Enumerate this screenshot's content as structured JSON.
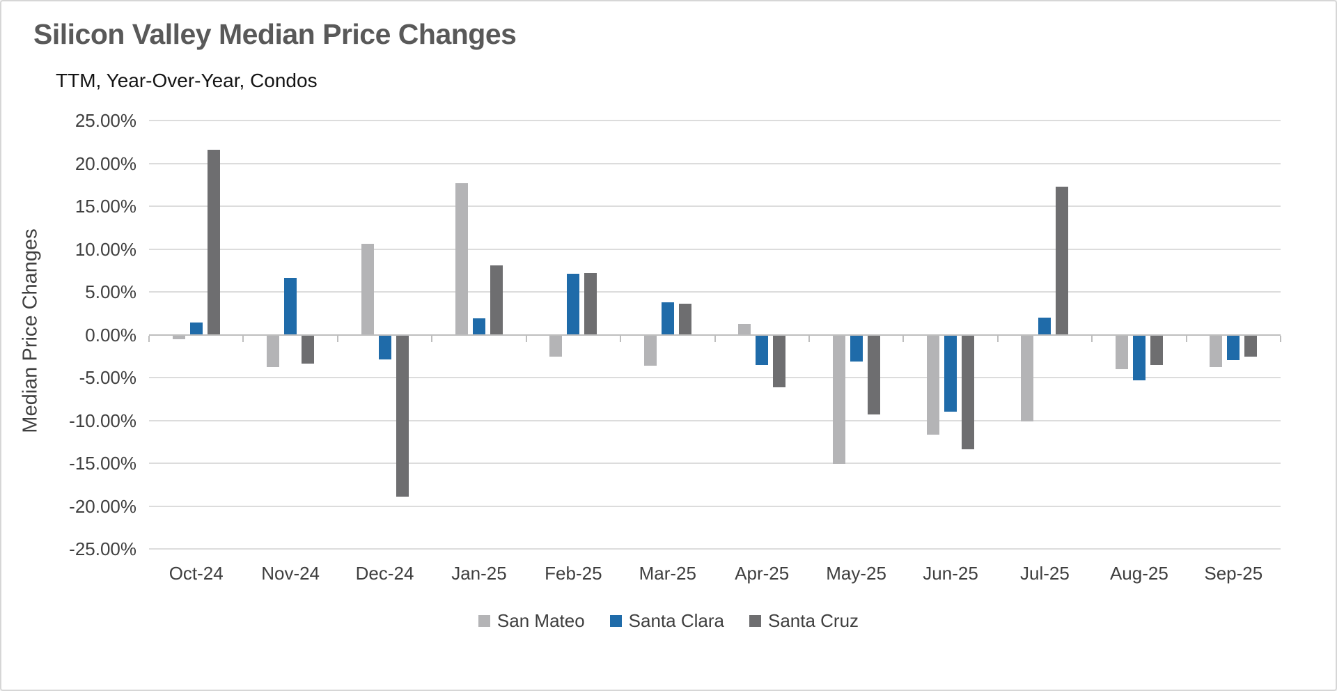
{
  "chart_data": {
    "type": "bar",
    "title": "Silicon Valley Median Price Changes",
    "subtitle": "TTM, Year-Over-Year, Condos",
    "ylabel": "Median Price Changes",
    "value_unit": "percent",
    "ylim": [
      -25,
      25
    ],
    "ytick_step": 5,
    "ytick_format": "0.00%",
    "grid": "horizontal",
    "legend_position": "bottom",
    "categories": [
      "Oct-24",
      "Nov-24",
      "Dec-24",
      "Jan-25",
      "Feb-25",
      "Mar-25",
      "Apr-25",
      "May-25",
      "Jun-25",
      "Jul-25",
      "Aug-25",
      "Sep-25"
    ],
    "series": [
      {
        "name": "San Mateo",
        "color": "#b4b4b6",
        "values": [
          -0.5,
          -3.8,
          10.6,
          17.7,
          -2.6,
          -3.6,
          1.3,
          -15.1,
          -11.7,
          -10.1,
          -4.0,
          -3.8
        ]
      },
      {
        "name": "Santa Clara",
        "color": "#1f6ba9",
        "values": [
          1.4,
          6.6,
          -2.9,
          1.9,
          7.1,
          3.8,
          -3.5,
          -3.1,
          -9.0,
          2.0,
          -5.3,
          -3.0
        ]
      },
      {
        "name": "Santa Cruz",
        "color": "#6e6e70",
        "values": [
          21.6,
          -3.4,
          -18.9,
          8.1,
          7.2,
          3.6,
          -6.1,
          -9.3,
          -13.4,
          17.3,
          -3.5,
          -2.6
        ]
      }
    ],
    "ytick_labels": [
      "25.00%",
      "20.00%",
      "15.00%",
      "10.00%",
      "5.00%",
      "0.00%",
      "-5.00%",
      "-10.00%",
      "-15.00%",
      "-20.00%",
      "-25.00%"
    ]
  },
  "colors": {
    "gridline": "#dcdcdc",
    "axis": "#bebebe",
    "tick_label": "#3f3f3f",
    "title": "#595959",
    "subtitle": "#141414",
    "background": "#ffffff"
  }
}
